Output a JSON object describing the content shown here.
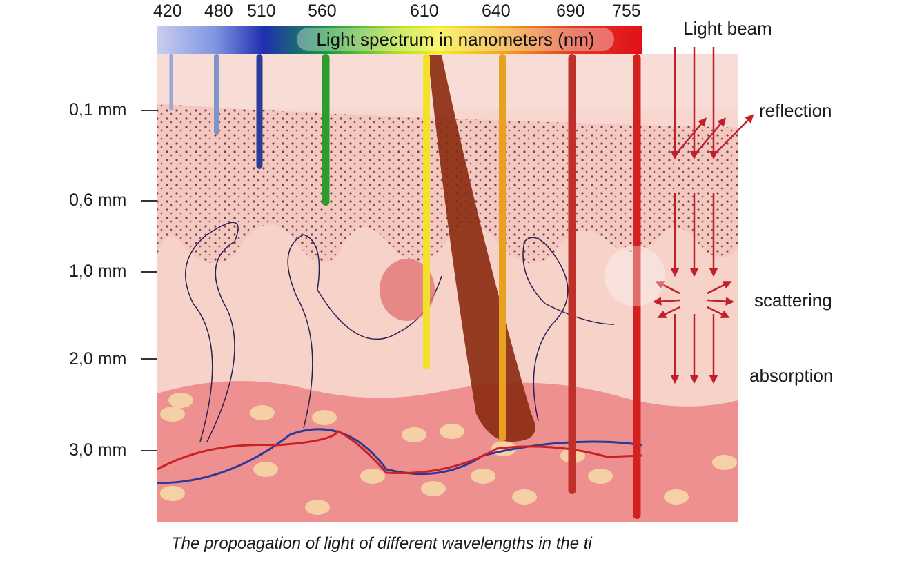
{
  "wavelengths": [
    "420",
    "480",
    "510",
    "560",
    "610",
    "640",
    "690",
    "755"
  ],
  "spectrum_title": "Light spectrum in nanometers (nm)",
  "depth_labels": [
    "0,1 mm",
    "0,6 mm",
    "1,0 mm",
    "2,0 mm",
    "3,0 mm"
  ],
  "beam_labels": {
    "light_beam": "Light beam",
    "reflection": "reflection",
    "scattering": "scattering",
    "absorption": "absorption"
  },
  "caption": "The propoagation of light of different wavelengths in the ti",
  "colors": {
    "violet": "#9aa6d6",
    "blue_light": "#7f95c8",
    "blue": "#2b3c9a",
    "green": "#2e9b2e",
    "yellow": "#f2e02a",
    "orange": "#e8a020",
    "red": "#c0302a",
    "deep_red": "#d4201e",
    "skin": "#f6cfc4",
    "dermis": "#f3c5b8",
    "hypodermis": "#ef8e8e"
  }
}
